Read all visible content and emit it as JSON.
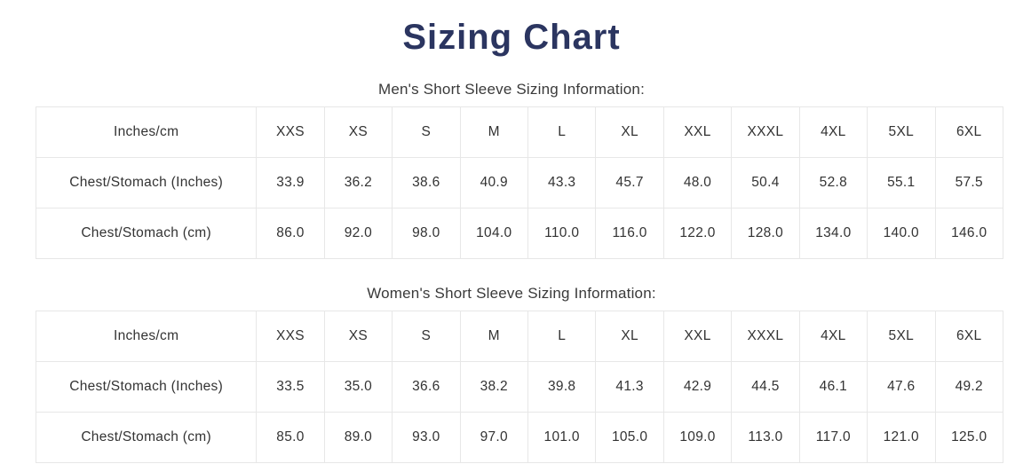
{
  "page": {
    "title": "Sizing Chart"
  },
  "colors": {
    "title": "#2b3560",
    "text": "#3a3a3a",
    "table_border": "#e7e7e7"
  },
  "tables": [
    {
      "caption": "Men's Short Sleeve Sizing Information:",
      "header": [
        "Inches/cm",
        "XXS",
        "XS",
        "S",
        "M",
        "L",
        "XL",
        "XXL",
        "XXXL",
        "4XL",
        "5XL",
        "6XL"
      ],
      "rows": [
        [
          "Chest/Stomach (Inches)",
          "33.9",
          "36.2",
          "38.6",
          "40.9",
          "43.3",
          "45.7",
          "48.0",
          "50.4",
          "52.8",
          "55.1",
          "57.5"
        ],
        [
          "Chest/Stomach (cm)",
          "86.0",
          "92.0",
          "98.0",
          "104.0",
          "110.0",
          "116.0",
          "122.0",
          "128.0",
          "134.0",
          "140.0",
          "146.0"
        ]
      ]
    },
    {
      "caption": "Women's Short Sleeve Sizing Information:",
      "header": [
        "Inches/cm",
        "XXS",
        "XS",
        "S",
        "M",
        "L",
        "XL",
        "XXL",
        "XXXL",
        "4XL",
        "5XL",
        "6XL"
      ],
      "rows": [
        [
          "Chest/Stomach (Inches)",
          "33.5",
          "35.0",
          "36.6",
          "38.2",
          "39.8",
          "41.3",
          "42.9",
          "44.5",
          "46.1",
          "47.6",
          "49.2"
        ],
        [
          "Chest/Stomach (cm)",
          "85.0",
          "89.0",
          "93.0",
          "97.0",
          "101.0",
          "105.0",
          "109.0",
          "113.0",
          "117.0",
          "121.0",
          "125.0"
        ]
      ]
    }
  ]
}
